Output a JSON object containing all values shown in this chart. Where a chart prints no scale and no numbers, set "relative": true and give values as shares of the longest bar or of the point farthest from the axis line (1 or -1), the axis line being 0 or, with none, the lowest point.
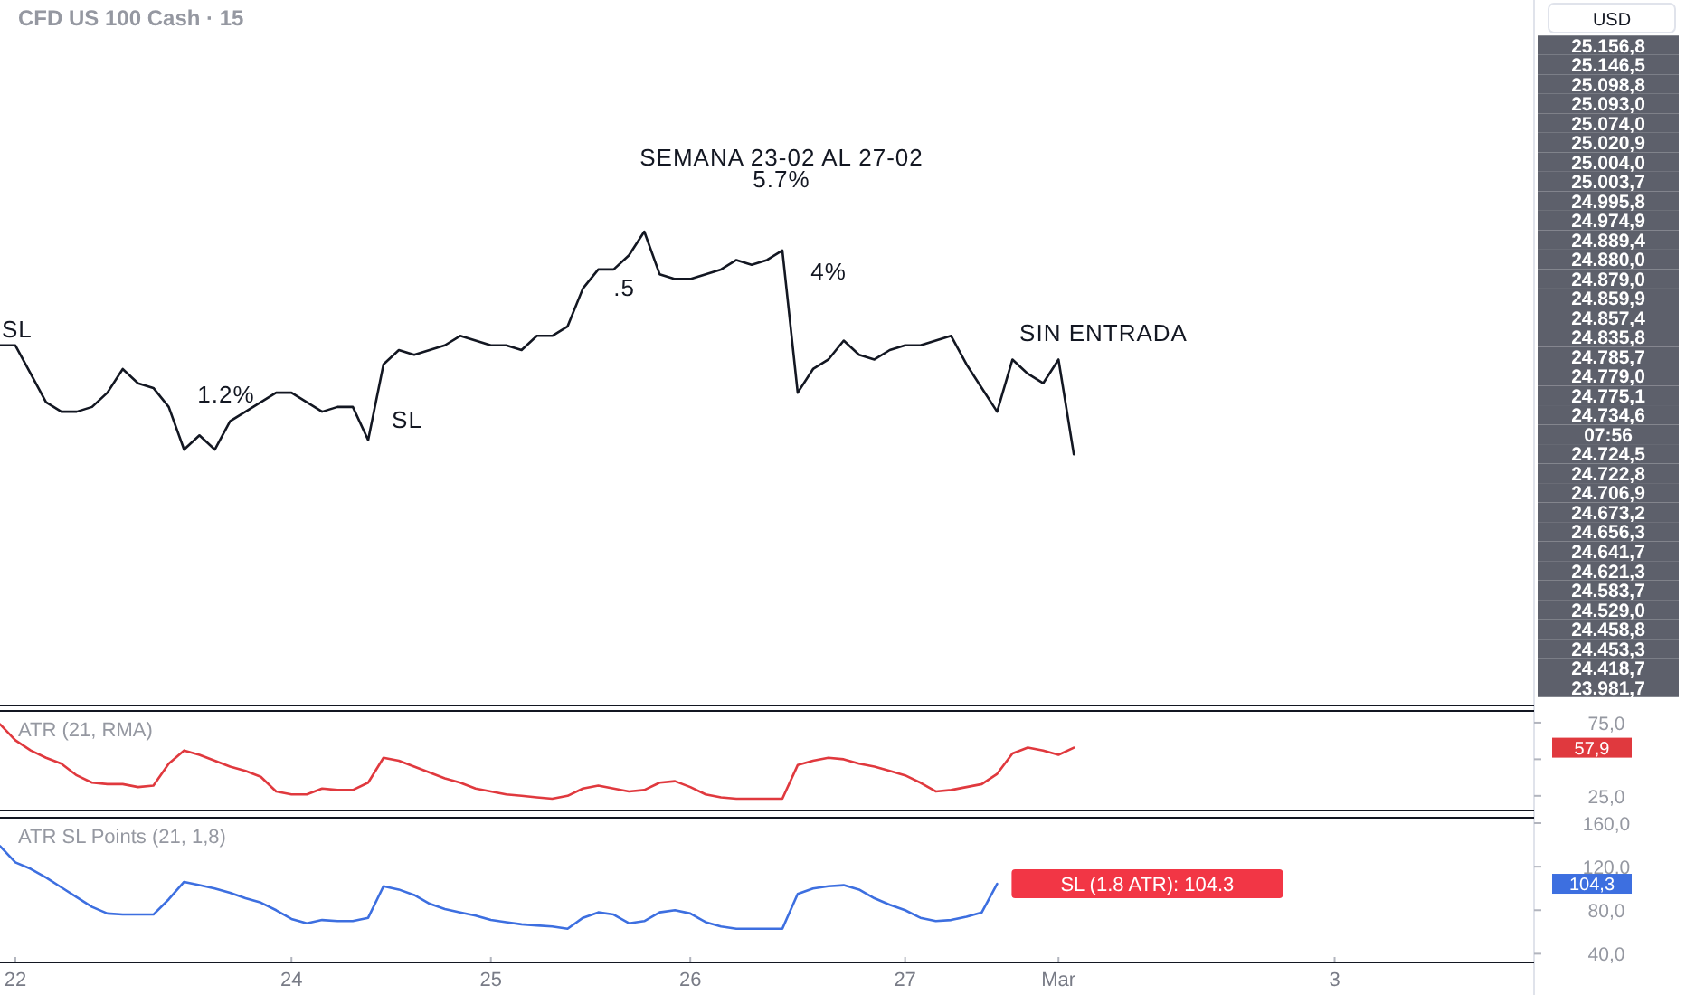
{
  "chart_data": [
    {
      "type": "line",
      "title": "CFD US 100 Cash · 15",
      "relative": true,
      "tick_labels": false,
      "categories": [
        null,
        null,
        null,
        null,
        null,
        null,
        null,
        null,
        null,
        null,
        null,
        null,
        null,
        null,
        null,
        null,
        null,
        null,
        null,
        null,
        null,
        null,
        null,
        null,
        null,
        null,
        null,
        null,
        null,
        null,
        null,
        null,
        null,
        null,
        null,
        null,
        null,
        null,
        null,
        null,
        null,
        null,
        null,
        null,
        null,
        null,
        null,
        null,
        null,
        null,
        null,
        null,
        null,
        null,
        null,
        null,
        null,
        null,
        null,
        null,
        null,
        null,
        null,
        null,
        null,
        null,
        null,
        null,
        null,
        null,
        null,
        null,
        null,
        null,
        null,
        null,
        null,
        null,
        null,
        null,
        null,
        null,
        null,
        null,
        null,
        null,
        null,
        null,
        null,
        null,
        null,
        null,
        null,
        null,
        null,
        null,
        null,
        null,
        null,
        null
      ],
      "series": [
        {
          "color": "#131722",
          "values": [
            0.76,
            0.76,
            0.7,
            0.64,
            0.62,
            0.62,
            0.63,
            0.66,
            0.71,
            0.68,
            0.67,
            0.63,
            0.54,
            0.57,
            0.54,
            0.6,
            0.62,
            0.64,
            0.66,
            0.66,
            0.64,
            0.62,
            0.63,
            0.63,
            0.56,
            0.72,
            0.75,
            0.74,
            0.75,
            0.76,
            0.78,
            0.77,
            0.76,
            0.76,
            0.75,
            0.78,
            0.78,
            0.8,
            0.88,
            0.92,
            0.92,
            0.95,
            1,
            0.91,
            0.9,
            0.9,
            0.91,
            0.92,
            0.94,
            0.93,
            0.94,
            0.96,
            0.66,
            0.71,
            0.73,
            0.77,
            0.74,
            0.73,
            0.75,
            0.76,
            0.76,
            0.77,
            0.78,
            0.72,
            0.67,
            0.62,
            0.73,
            0.7,
            0.68,
            0.73,
            0.53,
            null,
            null,
            null,
            null,
            null,
            null,
            null,
            null,
            null,
            null,
            null,
            null,
            null,
            null,
            null,
            null,
            null,
            null,
            null,
            null,
            null,
            null,
            null,
            null,
            null,
            null,
            null,
            null,
            null
          ]
        }
      ],
      "annotations": [
        "SEMANA 23-02 AL 27-02",
        "5.7%",
        "SIN ENTRADA",
        "SL",
        "SL",
        "1.2%",
        ".5",
        "4%",
        "USD",
        "25.156,8",
        "25.146,5",
        "25.098,8",
        "25.093,0",
        "25.074,0",
        "25.020,9",
        "25.004,0",
        "25.003,7",
        "24.995,8",
        "24.974,9",
        "24.889,4",
        "24.880,0",
        "24.879,0",
        "24.859,9",
        "24.857,4",
        "24.835,8",
        "24.785,7",
        "24.779,0",
        "24.775,1",
        "24.734,6",
        "07:56",
        "24.724,5",
        "24.722,8",
        "24.706,9",
        "24.673,2",
        "24.656,3",
        "24.641,7",
        "24.621,3",
        "24.583,7",
        "24.529,0",
        "24.458,8",
        "24.453,3",
        "24.418,7",
        "23.981,7"
      ]
    },
    {
      "type": "line",
      "title": "ATR (21, RMA)",
      "tick_labels": "y",
      "ylim": [
        15,
        83
      ],
      "yticks": [
        {
          "value": 75,
          "label": "75,0"
        },
        {
          "value": 50,
          "label": null
        },
        {
          "value": 25,
          "label": "25,0"
        }
      ],
      "categories": [
        null,
        null,
        null,
        null,
        null,
        null,
        null,
        null,
        null,
        null,
        null,
        null,
        null,
        null,
        null,
        null,
        null,
        null,
        null,
        null,
        null,
        null,
        null,
        null,
        null,
        null,
        null,
        null,
        null,
        null,
        null,
        null,
        null,
        null,
        null,
        null,
        null,
        null,
        null,
        null,
        null,
        null,
        null,
        null,
        null,
        null,
        null,
        null,
        null,
        null,
        null,
        null,
        null,
        null,
        null,
        null,
        null,
        null,
        null,
        null,
        null,
        null,
        null,
        null,
        null,
        null,
        null,
        null,
        null,
        null,
        null,
        null,
        null,
        null,
        null,
        null,
        null,
        null,
        null,
        null,
        null,
        null,
        null,
        null,
        null,
        null,
        null,
        null,
        null,
        null,
        null,
        null,
        null,
        null,
        null,
        null,
        null,
        null,
        null,
        null
      ],
      "series": [
        {
          "color": "#e0393e",
          "values": [
            74,
            63,
            56,
            51,
            47,
            39,
            34,
            33,
            33,
            31,
            32,
            47,
            56,
            53,
            49,
            45,
            42,
            38,
            28,
            26,
            26,
            30,
            29,
            29,
            34,
            51,
            49,
            45,
            41,
            37,
            34,
            30,
            28,
            26,
            25,
            24,
            23,
            25,
            30,
            32,
            30,
            28,
            29,
            34,
            35,
            31,
            26,
            24,
            23,
            23,
            23,
            23,
            46,
            49,
            51,
            50,
            47,
            45,
            42,
            39,
            34,
            28,
            29,
            31,
            33,
            40,
            54,
            58,
            56,
            53,
            57.9,
            null,
            null,
            null,
            null,
            null,
            null,
            null,
            null,
            null,
            null,
            null,
            null,
            null,
            null,
            null,
            null,
            null,
            null,
            null,
            null,
            null,
            null,
            null,
            null,
            null,
            null,
            null,
            null,
            null
          ]
        }
      ],
      "annotations": [
        "57,9"
      ]
    },
    {
      "type": "line",
      "title": "ATR SL Points (21, 1,8)",
      "ylim": [
        32,
        165
      ],
      "yticks": [
        {
          "value": 160,
          "label": "160,0"
        },
        {
          "value": 120,
          "label": "120,0"
        },
        {
          "value": 80,
          "label": "80,0"
        },
        {
          "value": 40,
          "label": "40,0"
        }
      ],
      "categories": [
        null,
        "22",
        null,
        null,
        null,
        null,
        null,
        null,
        null,
        null,
        null,
        null,
        null,
        null,
        null,
        null,
        null,
        null,
        null,
        "24",
        null,
        null,
        null,
        null,
        null,
        null,
        null,
        null,
        null,
        null,
        null,
        null,
        "25",
        null,
        null,
        null,
        null,
        null,
        null,
        null,
        null,
        null,
        null,
        null,
        null,
        "26",
        null,
        null,
        null,
        null,
        null,
        null,
        null,
        null,
        null,
        null,
        null,
        null,
        null,
        "27",
        null,
        null,
        null,
        null,
        null,
        null,
        null,
        null,
        null,
        "Mar",
        null,
        null,
        null,
        null,
        null,
        null,
        null,
        null,
        null,
        null,
        null,
        null,
        null,
        null,
        null,
        null,
        null,
        "3",
        null,
        null,
        null,
        null,
        null,
        null,
        null,
        null,
        null,
        null,
        null,
        null
      ],
      "series": [
        {
          "color": "#3d6fe0",
          "values": [
            139,
            124,
            118,
            110,
            101,
            92,
            83,
            77,
            76,
            76,
            76,
            90,
            106,
            103,
            100,
            96,
            91,
            87,
            80,
            72,
            68,
            71,
            70,
            70,
            73,
            102,
            99,
            94,
            86,
            81,
            78,
            75,
            71,
            69,
            67,
            66,
            65,
            63,
            73,
            78,
            76,
            68,
            70,
            78,
            80,
            77,
            69,
            65,
            63,
            63,
            63,
            63,
            95,
            100,
            102,
            103,
            99,
            91,
            85,
            80,
            73,
            70,
            71,
            74,
            78,
            104.3,
            null,
            null,
            null,
            null,
            null,
            null,
            null,
            null,
            null,
            null,
            null,
            null,
            null,
            null,
            null,
            null,
            null,
            null,
            null,
            null,
            null,
            null,
            null,
            null,
            null,
            null,
            null,
            null,
            null,
            null,
            null,
            null,
            null,
            null
          ]
        }
      ],
      "annotations": [
        "SL (1.8 ATR): 104.3",
        "104,3"
      ]
    }
  ]
}
